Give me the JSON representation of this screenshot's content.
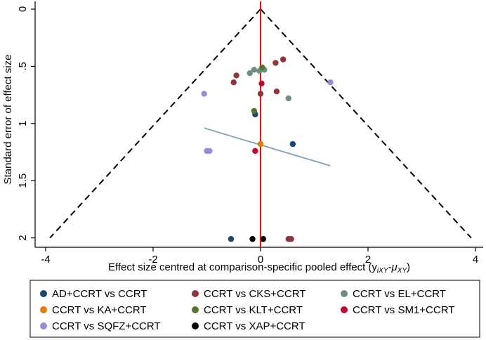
{
  "chart_data": {
    "type": "scatter",
    "subtype": "comparison-adjusted funnel plot",
    "xlabel": "Effect size centred at comparison-specific pooled effect (y",
    "xlabel_math": {
      "sub1": "iXY",
      "sep": "-μ",
      "sub2": "XY",
      "close": ")"
    },
    "ylabel": "Standard error of effect size",
    "xlim": [
      -4.2,
      4.2
    ],
    "ylim": [
      0,
      2.05
    ],
    "y_reversed": true,
    "x_ticks": [
      -4,
      -2,
      0,
      2,
      4
    ],
    "y_ticks": [
      0,
      0.5,
      1,
      1.5,
      2
    ],
    "x_tick_labels": [
      "-4",
      "-2",
      "0",
      "2",
      "4"
    ],
    "y_tick_labels": [
      "0",
      ".5",
      "1",
      "1.5",
      "2"
    ],
    "funnel": {
      "apex": [
        0,
        0
      ],
      "base_y": 2.0,
      "base_x": [
        -3.92,
        3.92
      ],
      "color": "#000000"
    },
    "zero_line": {
      "x": 0,
      "color": "#ff0000"
    },
    "fit_line": {
      "x": [
        -1.05,
        1.3
      ],
      "y": [
        1.04,
        1.37
      ],
      "color": "#7f9fbf"
    },
    "series": [
      {
        "name": "AD+CCRT vs CCRT",
        "color": "#1a476f",
        "x": [
          0.6,
          -0.1,
          -0.55
        ],
        "y": [
          1.18,
          0.92,
          2.01
        ]
      },
      {
        "name": "CCRT vs CKS+CCRT",
        "color": "#90353b",
        "x": [
          0.42,
          0.28,
          -0.45,
          -0.5,
          0.3,
          0.0,
          0.52,
          0.57
        ],
        "y": [
          0.44,
          0.47,
          0.58,
          0.64,
          0.72,
          0.74,
          2.01,
          2.01
        ]
      },
      {
        "name": "CCRT vs EL+CCRT",
        "color": "#6e8e84",
        "x": [
          -0.2,
          -0.12,
          -0.02,
          0.07,
          0.52
        ],
        "y": [
          0.56,
          0.53,
          0.54,
          0.53,
          0.78
        ]
      },
      {
        "name": "CCRT vs KA+CCRT",
        "color": "#e37e00",
        "x": [
          0.0
        ],
        "y": [
          1.18
        ]
      },
      {
        "name": "CCRT vs KLT+CCRT",
        "color": "#55752f",
        "x": [
          0.03,
          -0.12
        ],
        "y": [
          0.51,
          0.89
        ]
      },
      {
        "name": "CCRT vs SM1+CCRT",
        "color": "#c10534",
        "x": [
          0.02,
          -0.1
        ],
        "y": [
          0.65,
          1.24
        ]
      },
      {
        "name": "CCRT vs SQFZ+CCRT",
        "color": "#938dd2",
        "x": [
          1.3,
          -1.05,
          -0.95,
          -1.0
        ],
        "y": [
          0.64,
          0.74,
          1.24,
          1.24
        ]
      },
      {
        "name": "CCRT vs XAP+CCRT",
        "color": "#000000",
        "x": [
          -0.15,
          0.05
        ],
        "y": [
          2.01,
          2.01
        ]
      }
    ],
    "legend_position": "bottom"
  }
}
